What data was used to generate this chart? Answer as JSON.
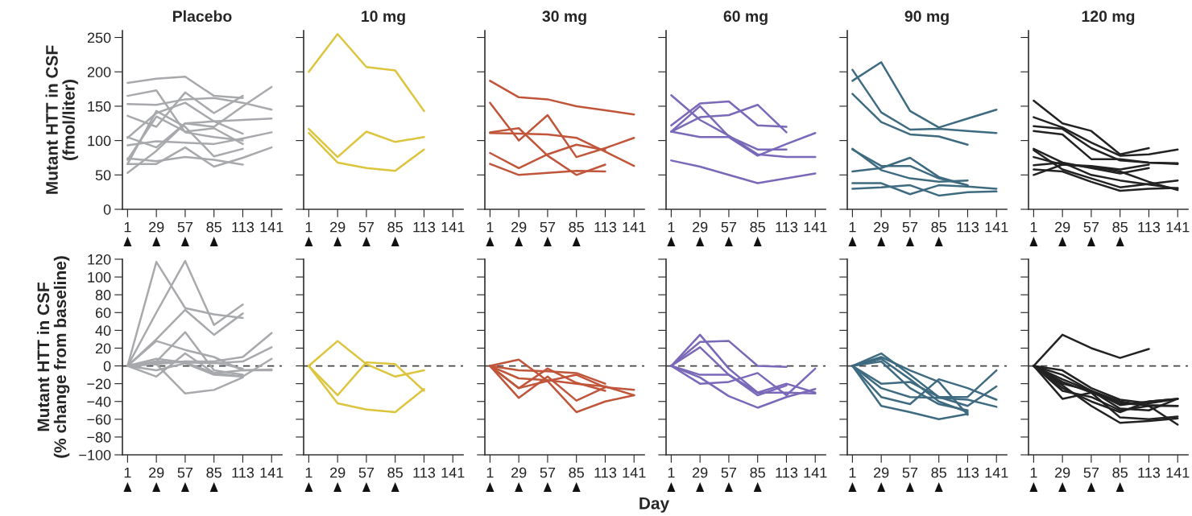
{
  "chart_data": [
    {
      "type": "line",
      "title": "Placebo",
      "ylabel": "Mutant HTT in CSF\n(fmol/liter)",
      "x": [
        1,
        29,
        57,
        85,
        113,
        141
      ],
      "xlim": [
        -4,
        151
      ],
      "xticks": [
        1,
        29,
        57,
        85,
        113,
        141
      ],
      "ylim": [
        0,
        260
      ],
      "yticks": [
        0,
        50,
        100,
        150,
        200,
        250
      ],
      "series": [
        {
          "color": "#a7a9ac",
          "values": [
            184,
            190,
            193,
            165,
            162,
            null
          ]
        },
        {
          "color": "#a7a9ac",
          "values": [
            165,
            173,
            112,
            105,
            100,
            null
          ]
        },
        {
          "color": "#a7a9ac",
          "values": [
            153,
            152,
            160,
            162,
            155,
            145
          ]
        },
        {
          "color": "#a7a9ac",
          "values": [
            136,
            120,
            170,
            140,
            165,
            null
          ]
        },
        {
          "color": "#a7a9ac",
          "values": [
            104,
            140,
            155,
            128,
            110,
            null
          ]
        },
        {
          "color": "#a7a9ac",
          "values": [
            105,
            90,
            125,
            128,
            130,
            132
          ]
        },
        {
          "color": "#a7a9ac",
          "values": [
            93,
            99,
            97,
            95,
            103,
            112
          ]
        },
        {
          "color": "#a7a9ac",
          "values": [
            74,
            70,
            76,
            72,
            65,
            null
          ]
        },
        {
          "color": "#a7a9ac",
          "values": [
            66,
            66,
            90,
            62,
            75,
            90
          ]
        },
        {
          "color": "#a7a9ac",
          "values": [
            53,
            85,
            125,
            120,
            150,
            178
          ]
        },
        {
          "color": "#a7a9ac",
          "values": [
            66,
            143,
            120,
            77,
            88,
            null
          ]
        },
        {
          "color": "#a7a9ac",
          "values": [
            72,
            135,
            113,
            118,
            95,
            null
          ]
        }
      ]
    },
    {
      "type": "line",
      "title": "10 mg",
      "x": [
        1,
        29,
        57,
        85,
        113
      ],
      "xlim": [
        -4,
        151
      ],
      "xticks": [
        1,
        29,
        57,
        85,
        113,
        141
      ],
      "ylim": [
        0,
        260
      ],
      "yticks": [
        0,
        50,
        100,
        150,
        200,
        250
      ],
      "tick_labels": "x",
      "series": [
        {
          "color": "#dcc43c",
          "values": [
            200,
            255,
            207,
            202,
            143
          ]
        },
        {
          "color": "#dcc43c",
          "values": [
            117,
            76,
            113,
            98,
            105
          ]
        },
        {
          "color": "#dcc43c",
          "values": [
            111,
            68,
            60,
            56,
            87
          ]
        }
      ]
    },
    {
      "type": "line",
      "title": "30 mg",
      "x": [
        1,
        29,
        57,
        85,
        113,
        141
      ],
      "xlim": [
        -4,
        151
      ],
      "xticks": [
        1,
        29,
        57,
        85,
        113,
        141
      ],
      "ylim": [
        0,
        260
      ],
      "yticks": [
        0,
        50,
        100,
        150,
        200,
        250
      ],
      "tick_labels": "x",
      "series": [
        {
          "color": "#c0553a",
          "values": [
            187,
            163,
            160,
            150,
            144,
            138
          ]
        },
        {
          "color": "#c0553a",
          "values": [
            155,
            100,
            137,
            76,
            89,
            104
          ]
        },
        {
          "color": "#c0553a",
          "values": [
            112,
            118,
            78,
            50,
            65,
            null
          ]
        },
        {
          "color": "#c0553a",
          "values": [
            111,
            110,
            109,
            104,
            84,
            63
          ]
        },
        {
          "color": "#c0553a",
          "values": [
            82,
            60,
            80,
            94,
            86,
            null
          ]
        },
        {
          "color": "#c0553a",
          "values": [
            66,
            50,
            53,
            56,
            55,
            null
          ]
        }
      ]
    },
    {
      "type": "line",
      "title": "60 mg",
      "x": [
        1,
        29,
        57,
        85,
        113,
        141
      ],
      "xlim": [
        -4,
        151
      ],
      "xticks": [
        1,
        29,
        57,
        85,
        113,
        141
      ],
      "ylim": [
        0,
        260
      ],
      "yticks": [
        0,
        50,
        100,
        150,
        200,
        250
      ],
      "tick_labels": "x",
      "series": [
        {
          "color": "#7a68b8",
          "values": [
            166,
            130,
            107,
            80,
            76,
            76
          ]
        },
        {
          "color": "#7a68b8",
          "values": [
            122,
            154,
            157,
            122,
            120,
            null
          ]
        },
        {
          "color": "#7a68b8",
          "values": [
            113,
            134,
            137,
            152,
            112,
            null
          ]
        },
        {
          "color": "#7a68b8",
          "values": [
            113,
            150,
            106,
            87,
            87,
            null
          ]
        },
        {
          "color": "#7a68b8",
          "values": [
            113,
            105,
            105,
            78,
            95,
            111
          ]
        },
        {
          "color": "#7a68b8",
          "values": [
            71,
            62,
            50,
            38,
            45,
            52
          ]
        }
      ]
    },
    {
      "type": "line",
      "title": "90 mg",
      "x": [
        1,
        29,
        57,
        85,
        113,
        141
      ],
      "xlim": [
        -4,
        151
      ],
      "xticks": [
        1,
        29,
        57,
        85,
        113,
        141
      ],
      "ylim": [
        0,
        260
      ],
      "yticks": [
        0,
        50,
        100,
        150,
        200,
        250
      ],
      "tick_labels": "x",
      "series": [
        {
          "color": "#3e6b80",
          "values": [
            187,
            214,
            143,
            119,
            132,
            145
          ]
        },
        {
          "color": "#3e6b80",
          "values": [
            203,
            141,
            116,
            117,
            114,
            111
          ]
        },
        {
          "color": "#3e6b80",
          "values": [
            168,
            127,
            109,
            106,
            94,
            null
          ]
        },
        {
          "color": "#3e6b80",
          "values": [
            87,
            63,
            63,
            45,
            35,
            null
          ]
        },
        {
          "color": "#3e6b80",
          "values": [
            88,
            57,
            45,
            40,
            42,
            null
          ]
        },
        {
          "color": "#3e6b80",
          "values": [
            55,
            60,
            75,
            47,
            35,
            null
          ]
        },
        {
          "color": "#3e6b80",
          "values": [
            38,
            38,
            22,
            35,
            33,
            30
          ]
        },
        {
          "color": "#3e6b80",
          "values": [
            30,
            32,
            35,
            20,
            25,
            26
          ]
        }
      ]
    },
    {
      "type": "line",
      "title": "120 mg",
      "x": [
        1,
        29,
        57,
        85,
        113,
        141
      ],
      "xlim": [
        -4,
        151
      ],
      "xticks": [
        1,
        29,
        57,
        85,
        113,
        141
      ],
      "ylim": [
        0,
        260
      ],
      "yticks": [
        0,
        50,
        100,
        150,
        200,
        250
      ],
      "tick_labels": "x",
      "series": [
        {
          "color": "#222222",
          "values": [
            158,
            125,
            114,
            80,
            89,
            null
          ]
        },
        {
          "color": "#222222",
          "values": [
            134,
            119,
            97,
            78,
            80,
            87
          ]
        },
        {
          "color": "#222222",
          "values": [
            121,
            117,
            89,
            71,
            68,
            66
          ]
        },
        {
          "color": "#222222",
          "values": [
            114,
            109,
            73,
            73,
            68,
            67
          ]
        },
        {
          "color": "#222222",
          "values": [
            88,
            68,
            60,
            52,
            60,
            null
          ]
        },
        {
          "color": "#222222",
          "values": [
            86,
            58,
            45,
            32,
            37,
            42
          ]
        },
        {
          "color": "#222222",
          "values": [
            76,
            65,
            63,
            58,
            65,
            null
          ]
        },
        {
          "color": "#222222",
          "values": [
            64,
            68,
            50,
            42,
            36,
            30
          ]
        },
        {
          "color": "#222222",
          "values": [
            58,
            55,
            40,
            27,
            30,
            31
          ]
        },
        {
          "color": "#222222",
          "values": [
            50,
            65,
            62,
            55,
            40,
            28
          ]
        }
      ]
    },
    {
      "type": "line",
      "ylabel": "Mutant HTT in CSF\n(% change from baseline)",
      "x": [
        1,
        29,
        57,
        85,
        113,
        141
      ],
      "xlim": [
        -4,
        151
      ],
      "xticks": [
        1,
        29,
        57,
        85,
        113,
        141
      ],
      "ylim": [
        -100,
        120
      ],
      "yticks": [
        -100,
        -80,
        -60,
        -40,
        -20,
        0,
        20,
        40,
        60,
        80,
        100,
        120
      ],
      "ref_lines": [
        {
          "axis": "y",
          "value": 0,
          "color": "#444444",
          "line_style": "dashed"
        }
      ],
      "series": [
        {
          "color": "#a7a9ac",
          "values": [
            0,
            117,
            65,
            58,
            54,
            null
          ]
        },
        {
          "color": "#a7a9ac",
          "values": [
            0,
            60,
            118,
            46,
            69,
            null
          ]
        },
        {
          "color": "#a7a9ac",
          "values": [
            0,
            30,
            63,
            35,
            59,
            null
          ]
        },
        {
          "color": "#a7a9ac",
          "values": [
            0,
            28,
            18,
            10,
            -5,
            -4
          ]
        },
        {
          "color": "#a7a9ac",
          "values": [
            0,
            5,
            38,
            -5,
            -10,
            null
          ]
        },
        {
          "color": "#a7a9ac",
          "values": [
            0,
            -12,
            14,
            -8,
            -12,
            null
          ]
        },
        {
          "color": "#a7a9ac",
          "values": [
            0,
            2,
            -31,
            -27,
            -13,
            null
          ]
        },
        {
          "color": "#a7a9ac",
          "values": [
            0,
            2,
            5,
            5,
            10,
            37
          ]
        },
        {
          "color": "#a7a9ac",
          "values": [
            0,
            5,
            4,
            3,
            5,
            21
          ]
        },
        {
          "color": "#a7a9ac",
          "values": [
            0,
            -5,
            3,
            -10,
            -12,
            8
          ]
        },
        {
          "color": "#a7a9ac",
          "values": [
            0,
            8,
            4,
            -8,
            -5,
            -5
          ]
        },
        {
          "color": "#a7a9ac",
          "values": [
            0,
            3,
            5,
            4,
            -3,
            null
          ]
        }
      ]
    },
    {
      "type": "line",
      "x": [
        1,
        29,
        57,
        85,
        113
      ],
      "xlim": [
        -4,
        151
      ],
      "xticks": [
        1,
        29,
        57,
        85,
        113,
        141
      ],
      "ylim": [
        -100,
        120
      ],
      "yticks": [
        -100,
        -80,
        -60,
        -40,
        -20,
        0,
        20,
        40,
        60,
        80,
        100,
        120
      ],
      "tick_labels": "x",
      "ref_lines": [
        {
          "axis": "y",
          "value": 0,
          "color": "#444444",
          "line_style": "dashed"
        }
      ],
      "series": [
        {
          "color": "#dcc43c",
          "values": [
            0,
            28,
            2,
            -12,
            -5
          ]
        },
        {
          "color": "#dcc43c",
          "values": [
            0,
            -33,
            4,
            2,
            -28
          ]
        },
        {
          "color": "#dcc43c",
          "values": [
            0,
            -42,
            -49,
            -52,
            -26
          ]
        }
      ]
    },
    {
      "type": "line",
      "x": [
        1,
        29,
        57,
        85,
        113,
        141
      ],
      "xlim": [
        -4,
        151
      ],
      "xticks": [
        1,
        29,
        57,
        85,
        113,
        141
      ],
      "ylim": [
        -100,
        120
      ],
      "yticks": [
        -100,
        -80,
        -60,
        -40,
        -20,
        0,
        20,
        40,
        60,
        80,
        100,
        120
      ],
      "tick_labels": "x",
      "ref_lines": [
        {
          "axis": "y",
          "value": 0,
          "color": "#444444",
          "line_style": "dashed"
        }
      ],
      "series": [
        {
          "color": "#c0553a",
          "values": [
            0,
            7,
            -17,
            -10,
            -24,
            -27
          ]
        },
        {
          "color": "#c0553a",
          "values": [
            0,
            -5,
            -6,
            -8,
            -20,
            null
          ]
        },
        {
          "color": "#c0553a",
          "values": [
            0,
            -14,
            -16,
            -20,
            -23,
            -33
          ]
        },
        {
          "color": "#c0553a",
          "values": [
            0,
            -25,
            -3,
            -19,
            -28,
            null
          ]
        },
        {
          "color": "#c0553a",
          "values": [
            0,
            -36,
            -12,
            -39,
            -24,
            null
          ]
        },
        {
          "color": "#c0553a",
          "values": [
            0,
            -25,
            -17,
            -52,
            -40,
            -33
          ]
        }
      ]
    },
    {
      "type": "line",
      "xlabel": "Day",
      "x": [
        1,
        29,
        57,
        85,
        113,
        141
      ],
      "xlim": [
        -4,
        151
      ],
      "xticks": [
        1,
        29,
        57,
        85,
        113,
        141
      ],
      "ylim": [
        -100,
        120
      ],
      "yticks": [
        -100,
        -80,
        -60,
        -40,
        -20,
        0,
        20,
        40,
        60,
        80,
        100,
        120
      ],
      "tick_labels": "x",
      "ref_lines": [
        {
          "axis": "y",
          "value": 0,
          "color": "#444444",
          "line_style": "dashed"
        }
      ],
      "series": [
        {
          "color": "#7a68b8",
          "values": [
            0,
            35,
            -3,
            -30,
            -20,
            -30
          ]
        },
        {
          "color": "#7a68b8",
          "values": [
            0,
            27,
            28,
            0,
            -1,
            null
          ]
        },
        {
          "color": "#7a68b8",
          "values": [
            0,
            21,
            -10,
            -33,
            -22,
            null
          ]
        },
        {
          "color": "#7a68b8",
          "values": [
            0,
            -10,
            -10,
            -30,
            -30,
            -31
          ]
        },
        {
          "color": "#7a68b8",
          "values": [
            0,
            -20,
            -18,
            -8,
            -33,
            -3
          ]
        },
        {
          "color": "#7a68b8",
          "values": [
            0,
            -13,
            -34,
            -47,
            -35,
            -26
          ]
        }
      ]
    },
    {
      "type": "line",
      "x": [
        1,
        29,
        57,
        85,
        113,
        141
      ],
      "xlim": [
        -4,
        151
      ],
      "xticks": [
        1,
        29,
        57,
        85,
        113,
        141
      ],
      "ylim": [
        -100,
        120
      ],
      "yticks": [
        -100,
        -80,
        -60,
        -40,
        -20,
        0,
        20,
        40,
        60,
        80,
        100,
        120
      ],
      "tick_labels": "x",
      "ref_lines": [
        {
          "axis": "y",
          "value": 0,
          "color": "#444444",
          "line_style": "dashed"
        }
      ],
      "series": [
        {
          "color": "#3e6b80",
          "values": [
            0,
            14,
            -10,
            -35,
            -35,
            -5
          ]
        },
        {
          "color": "#3e6b80",
          "values": [
            0,
            10,
            -5,
            -18,
            -55,
            null
          ]
        },
        {
          "color": "#3e6b80",
          "values": [
            0,
            8,
            -15,
            -40,
            -52,
            null
          ]
        },
        {
          "color": "#3e6b80",
          "values": [
            0,
            5,
            -25,
            -43,
            -50,
            null
          ]
        },
        {
          "color": "#3e6b80",
          "values": [
            0,
            -20,
            -18,
            -35,
            -45,
            -23
          ]
        },
        {
          "color": "#3e6b80",
          "values": [
            0,
            -35,
            -43,
            -15,
            -25,
            -38
          ]
        },
        {
          "color": "#3e6b80",
          "values": [
            0,
            -25,
            -35,
            -36,
            -38,
            -46
          ]
        },
        {
          "color": "#3e6b80",
          "values": [
            0,
            -45,
            -52,
            -60,
            -54,
            null
          ]
        }
      ]
    },
    {
      "type": "line",
      "x": [
        1,
        29,
        57,
        85,
        113,
        141
      ],
      "xlim": [
        -4,
        151
      ],
      "xticks": [
        1,
        29,
        57,
        85,
        113,
        141
      ],
      "ylim": [
        -100,
        120
      ],
      "yticks": [
        -100,
        -80,
        -60,
        -40,
        -20,
        0,
        20,
        40,
        60,
        80,
        100,
        120
      ],
      "tick_labels": "x",
      "ref_lines": [
        {
          "axis": "y",
          "value": 0,
          "color": "#444444",
          "line_style": "dashed"
        }
      ],
      "series": [
        {
          "color": "#222222",
          "values": [
            0,
            35,
            20,
            9,
            19,
            null
          ]
        },
        {
          "color": "#222222",
          "values": [
            0,
            -5,
            -25,
            -38,
            -42,
            -37
          ]
        },
        {
          "color": "#222222",
          "values": [
            0,
            -10,
            -28,
            -40,
            -45,
            -45
          ]
        },
        {
          "color": "#222222",
          "values": [
            0,
            -15,
            -28,
            -44,
            -40,
            -37
          ]
        },
        {
          "color": "#222222",
          "values": [
            0,
            -18,
            -30,
            -42,
            -44,
            -45
          ]
        },
        {
          "color": "#222222",
          "values": [
            0,
            -20,
            -28,
            -48,
            -50,
            -37
          ]
        },
        {
          "color": "#222222",
          "values": [
            0,
            -25,
            -40,
            -52,
            -40,
            -37
          ]
        },
        {
          "color": "#222222",
          "values": [
            0,
            -28,
            -35,
            -50,
            -45,
            -66
          ]
        },
        {
          "color": "#222222",
          "values": [
            0,
            -37,
            -30,
            -58,
            -60,
            -57
          ]
        },
        {
          "color": "#222222",
          "values": [
            0,
            -22,
            -45,
            -64,
            -62,
            -59
          ]
        }
      ]
    }
  ]
}
